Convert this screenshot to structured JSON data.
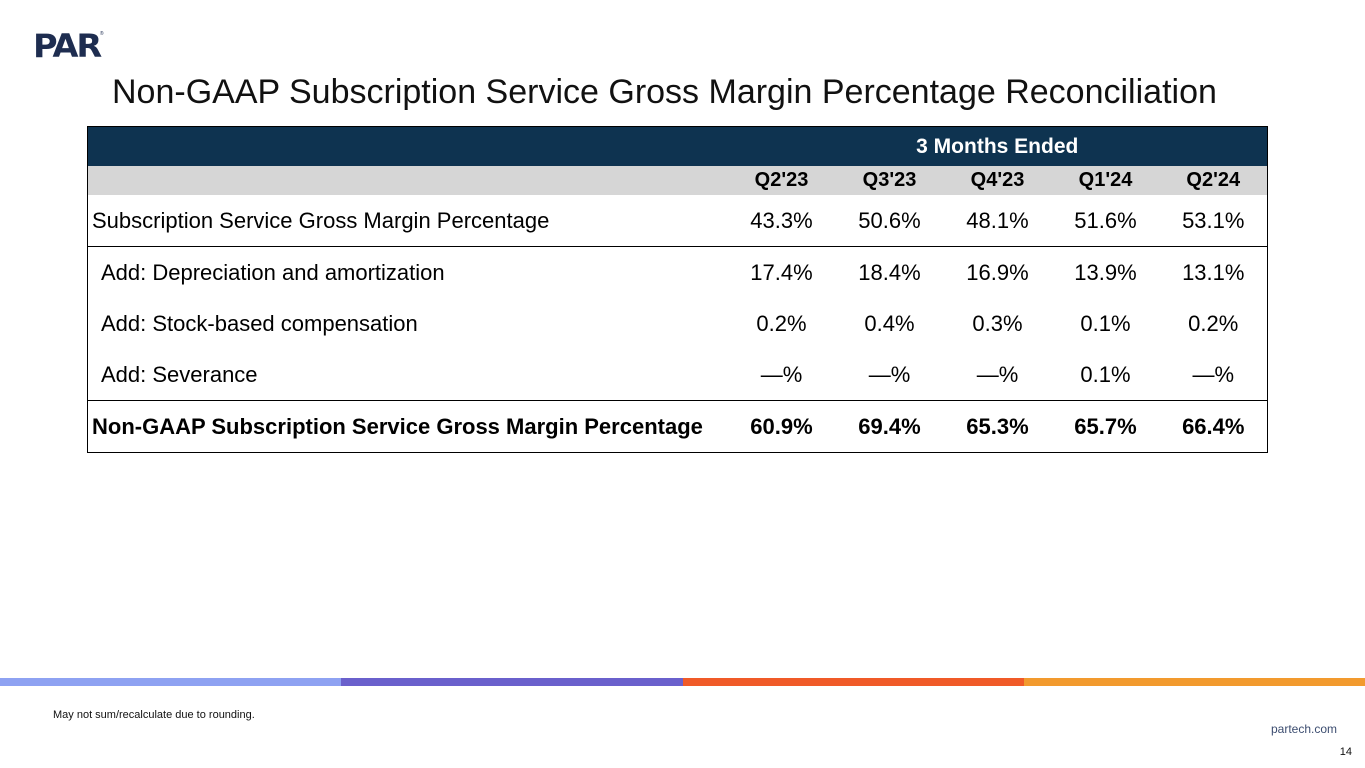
{
  "brand": {
    "logo_text": "PAR",
    "logo_mark": "®"
  },
  "title": "Non-GAAP Subscription Service Gross Margin Percentage Reconciliation",
  "table": {
    "period_header": "3 Months Ended",
    "columns": [
      "Q2'23",
      "Q3'23",
      "Q4'23",
      "Q1'24",
      "Q2'24"
    ],
    "rows": [
      {
        "label": "Subscription Service Gross Margin Percentage",
        "values": [
          "43.3%",
          "50.6%",
          "48.1%",
          "51.6%",
          "53.1%"
        ]
      },
      {
        "label": "Add: Depreciation and amortization",
        "values": [
          "17.4%",
          "18.4%",
          "16.9%",
          "13.9%",
          "13.1%"
        ]
      },
      {
        "label": "Add: Stock-based compensation",
        "values": [
          "0.2%",
          "0.4%",
          "0.3%",
          "0.1%",
          "0.2%"
        ]
      },
      {
        "label": "Add: Severance",
        "values": [
          "—%",
          "—%",
          "—%",
          "0.1%",
          "—%"
        ]
      },
      {
        "label": "Non-GAAP Subscription Service Gross Margin Percentage",
        "values": [
          "60.9%",
          "69.4%",
          "65.3%",
          "65.7%",
          "66.4%"
        ]
      }
    ]
  },
  "colors": {
    "header_bg": "#0e3350",
    "subheader_bg": "#d6d6d6",
    "stripe": [
      "#8ea2f2",
      "#6a60cc",
      "#f05a28",
      "#f29a2e"
    ]
  },
  "footer": {
    "note": "May not sum/recalculate due to rounding.",
    "website": "partech.com",
    "page_number": "14"
  }
}
